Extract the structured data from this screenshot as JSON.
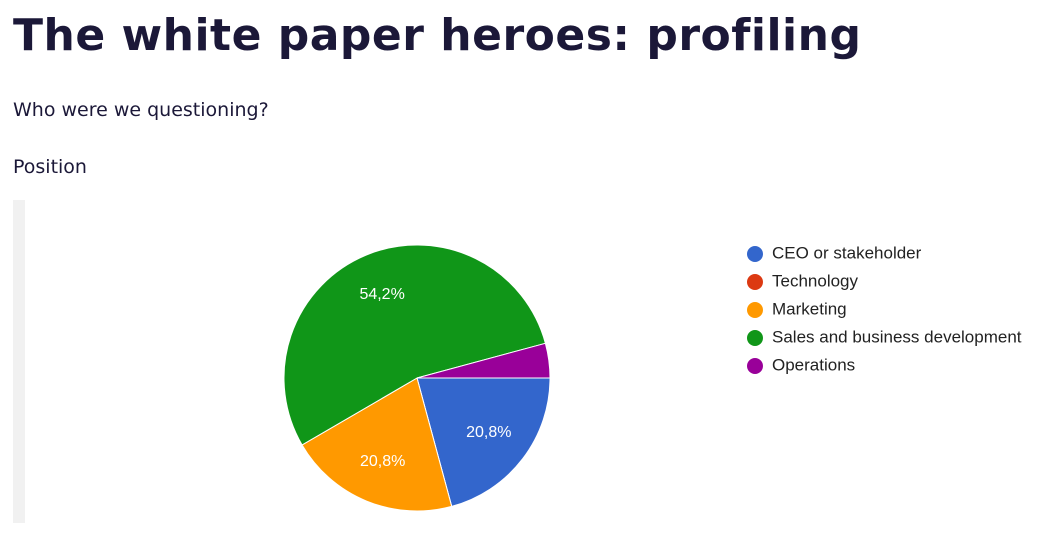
{
  "header": {
    "title": "The white paper heroes: profiling",
    "question": "Who were we questioning?"
  },
  "chart_data": {
    "type": "pie",
    "title": "Position",
    "categories": [
      "CEO or stakeholder",
      "Technology",
      "Marketing",
      "Sales and business development",
      "Operations"
    ],
    "values": [
      20.8,
      0,
      20.8,
      54.2,
      4.2
    ],
    "value_labels": [
      "20,8%",
      null,
      "20,8%",
      "54,2%",
      null
    ],
    "colors": [
      "#3366cc",
      "#dc3912",
      "#ff9900",
      "#109618",
      "#990099"
    ],
    "legend": "right"
  }
}
